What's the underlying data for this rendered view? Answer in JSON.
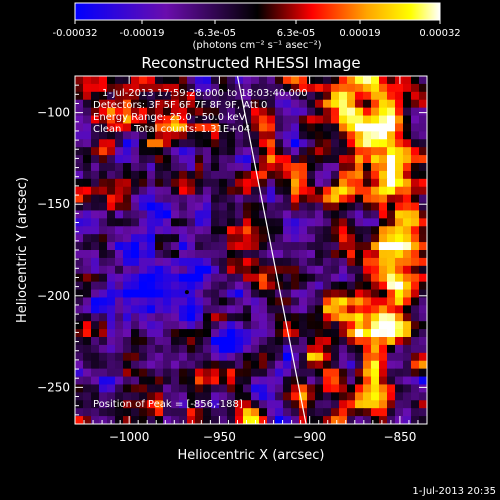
{
  "colorbar": {
    "tick_labels": [
      "-0.00032",
      "-0.00019",
      "-6.3e-05",
      "6.3e-05",
      "0.00019",
      "0.00032"
    ],
    "units_label": "(photons cm⁻² s⁻¹ asec⁻²)",
    "range": [
      -0.00032,
      0.00032
    ],
    "colormap": [
      "#0000ff",
      "#6a0dad",
      "#000000",
      "#ff0000",
      "#ffa500",
      "#ffff00",
      "#ffffff"
    ]
  },
  "chart": {
    "title": "Reconstructed RHESSI Image",
    "annotations": [
      "1-Jul-2013 17:59:28.000 to 18:03:40.000",
      "Detectors: 3F 5F 6F 7F 8F 9F, Att 0",
      "Energy Range: 25.0 - 50.0 keV",
      "Clean    Total counts: 1.31E+04"
    ],
    "peak_label": "Position of Peak = [-856,-188]"
  },
  "chart_data": {
    "type": "heatmap",
    "title": "Reconstructed RHESSI Image",
    "xlabel": "Heliocentric X (arcsec)",
    "ylabel": "Heliocentric Y (arcsec)",
    "xlim": [
      -1030,
      -835
    ],
    "ylim": [
      -270,
      -80
    ],
    "x_ticks": [
      -1000,
      -950,
      -900,
      -850
    ],
    "x_tick_labels": [
      "−1000",
      "−950",
      "−900",
      "−850"
    ],
    "y_ticks": [
      -100,
      -150,
      -200,
      -250
    ],
    "y_tick_labels": [
      "−100",
      "−150",
      "−200",
      "−250"
    ],
    "value_range": [
      -0.00032,
      0.00032
    ],
    "peak": [
      -856,
      -188
    ],
    "limb_line": [
      [
        -940,
        -80
      ],
      [
        -902,
        -270
      ]
    ]
  },
  "footer": {
    "timestamp": "1-Jul-2013 20:35"
  }
}
